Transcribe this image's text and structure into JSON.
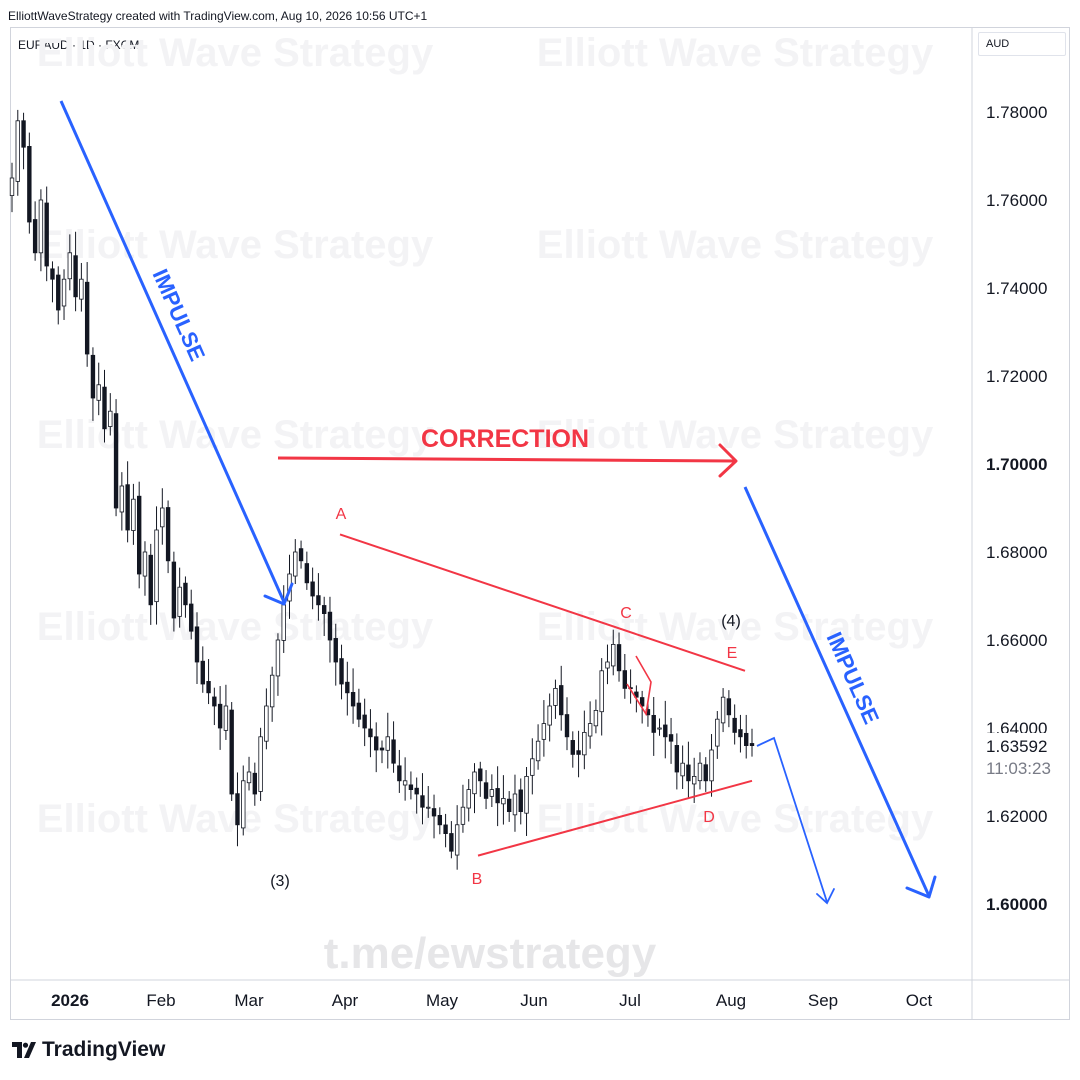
{
  "header": {
    "attribution": "ElliottWaveStrategy created with TradingView.com, Aug 10, 2026 10:56 UTC+1",
    "symbol": "EURAUD · 1D · FXCM",
    "currency": "AUD"
  },
  "footer": {
    "brand": "TradingView"
  },
  "watermark": {
    "text": "Elliott Wave Strategy",
    "link": "t.me/ewstrategy"
  },
  "chart_data": {
    "type": "candlestick",
    "symbol": "EURAUD",
    "interval": "1D",
    "source": "FXCM",
    "ylim": [
      1.582,
      1.8
    ],
    "y_ticks": [
      "1.78000",
      "1.76000",
      "1.74000",
      "1.72000",
      "1.70000",
      "1.68000",
      "1.66000",
      "1.64000",
      "1.62000",
      "1.60000"
    ],
    "x_ticks": [
      "2026",
      "Feb",
      "Mar",
      "Apr",
      "May",
      "Jun",
      "Jul",
      "Aug",
      "Sep",
      "Oct"
    ],
    "last_price": "1.63592",
    "countdown": "11:03:23",
    "colors": {
      "up": "#ffffff",
      "down": "#131722",
      "last_price_bg": "#ffffff",
      "blue": "#2962ff",
      "red": "#f23645"
    },
    "price_path": [
      1.765,
      1.778,
      1.772,
      1.755,
      1.748,
      1.76,
      1.745,
      1.742,
      1.735,
      1.742,
      1.748,
      1.738,
      1.742,
      1.725,
      1.715,
      1.718,
      1.708,
      1.712,
      1.69,
      1.695,
      1.685,
      1.692,
      1.675,
      1.68,
      1.668,
      1.685,
      1.69,
      1.678,
      1.665,
      1.672,
      1.668,
      1.662,
      1.655,
      1.65,
      1.648,
      1.645,
      1.64,
      1.645,
      1.625,
      1.618,
      1.628,
      1.63,
      1.625,
      1.638,
      1.645,
      1.652,
      1.66,
      1.668,
      1.675,
      1.68,
      1.678,
      1.673,
      1.67,
      1.668,
      1.666,
      1.66,
      1.655,
      1.65,
      1.648,
      1.645,
      1.642,
      1.64,
      1.638,
      1.635,
      1.635,
      1.638,
      1.632,
      1.628,
      1.628,
      1.626,
      1.625,
      1.622,
      1.622,
      1.62,
      1.618,
      1.616,
      1.612,
      1.618,
      1.622,
      1.626,
      1.63,
      1.628,
      1.624,
      1.626,
      1.623,
      1.624,
      1.621,
      1.625,
      1.621,
      1.629,
      1.633,
      1.637,
      1.641,
      1.645,
      1.649,
      1.643,
      1.638,
      1.634,
      1.634,
      1.639,
      1.641,
      1.644,
      1.653,
      1.655,
      1.659,
      1.653,
      1.649,
      1.649,
      1.647,
      1.645,
      1.643,
      1.639,
      1.64,
      1.638,
      1.637,
      1.63,
      1.632,
      1.628,
      1.629,
      1.632,
      1.628,
      1.635,
      1.642,
      1.647,
      1.643,
      1.639,
      1.638,
      1.636,
      1.636
    ],
    "annotations": [
      {
        "kind": "arrow",
        "label": "IMPULSE",
        "color": "blue",
        "direction": "down"
      },
      {
        "kind": "arrow",
        "label": "CORRECTION",
        "color": "red",
        "direction": "right"
      },
      {
        "kind": "arrow",
        "label": "IMPULSE",
        "color": "blue",
        "direction": "down"
      },
      {
        "kind": "projection",
        "color": "blue",
        "direction": "down"
      }
    ],
    "wave_labels": {
      "w3": "(3)",
      "w4": "(4)",
      "A": "A",
      "B": "B",
      "C": "C",
      "D": "D",
      "E": "E"
    },
    "triangle": {
      "upper": [
        {
          "date": "2026-04-01",
          "price": 1.684
        },
        {
          "date": "2026-08-10",
          "price": 1.653
        }
      ],
      "lower": [
        {
          "date": "2026-05-14",
          "price": 1.611
        },
        {
          "date": "2026-08-10",
          "price": 1.628
        }
      ]
    }
  }
}
